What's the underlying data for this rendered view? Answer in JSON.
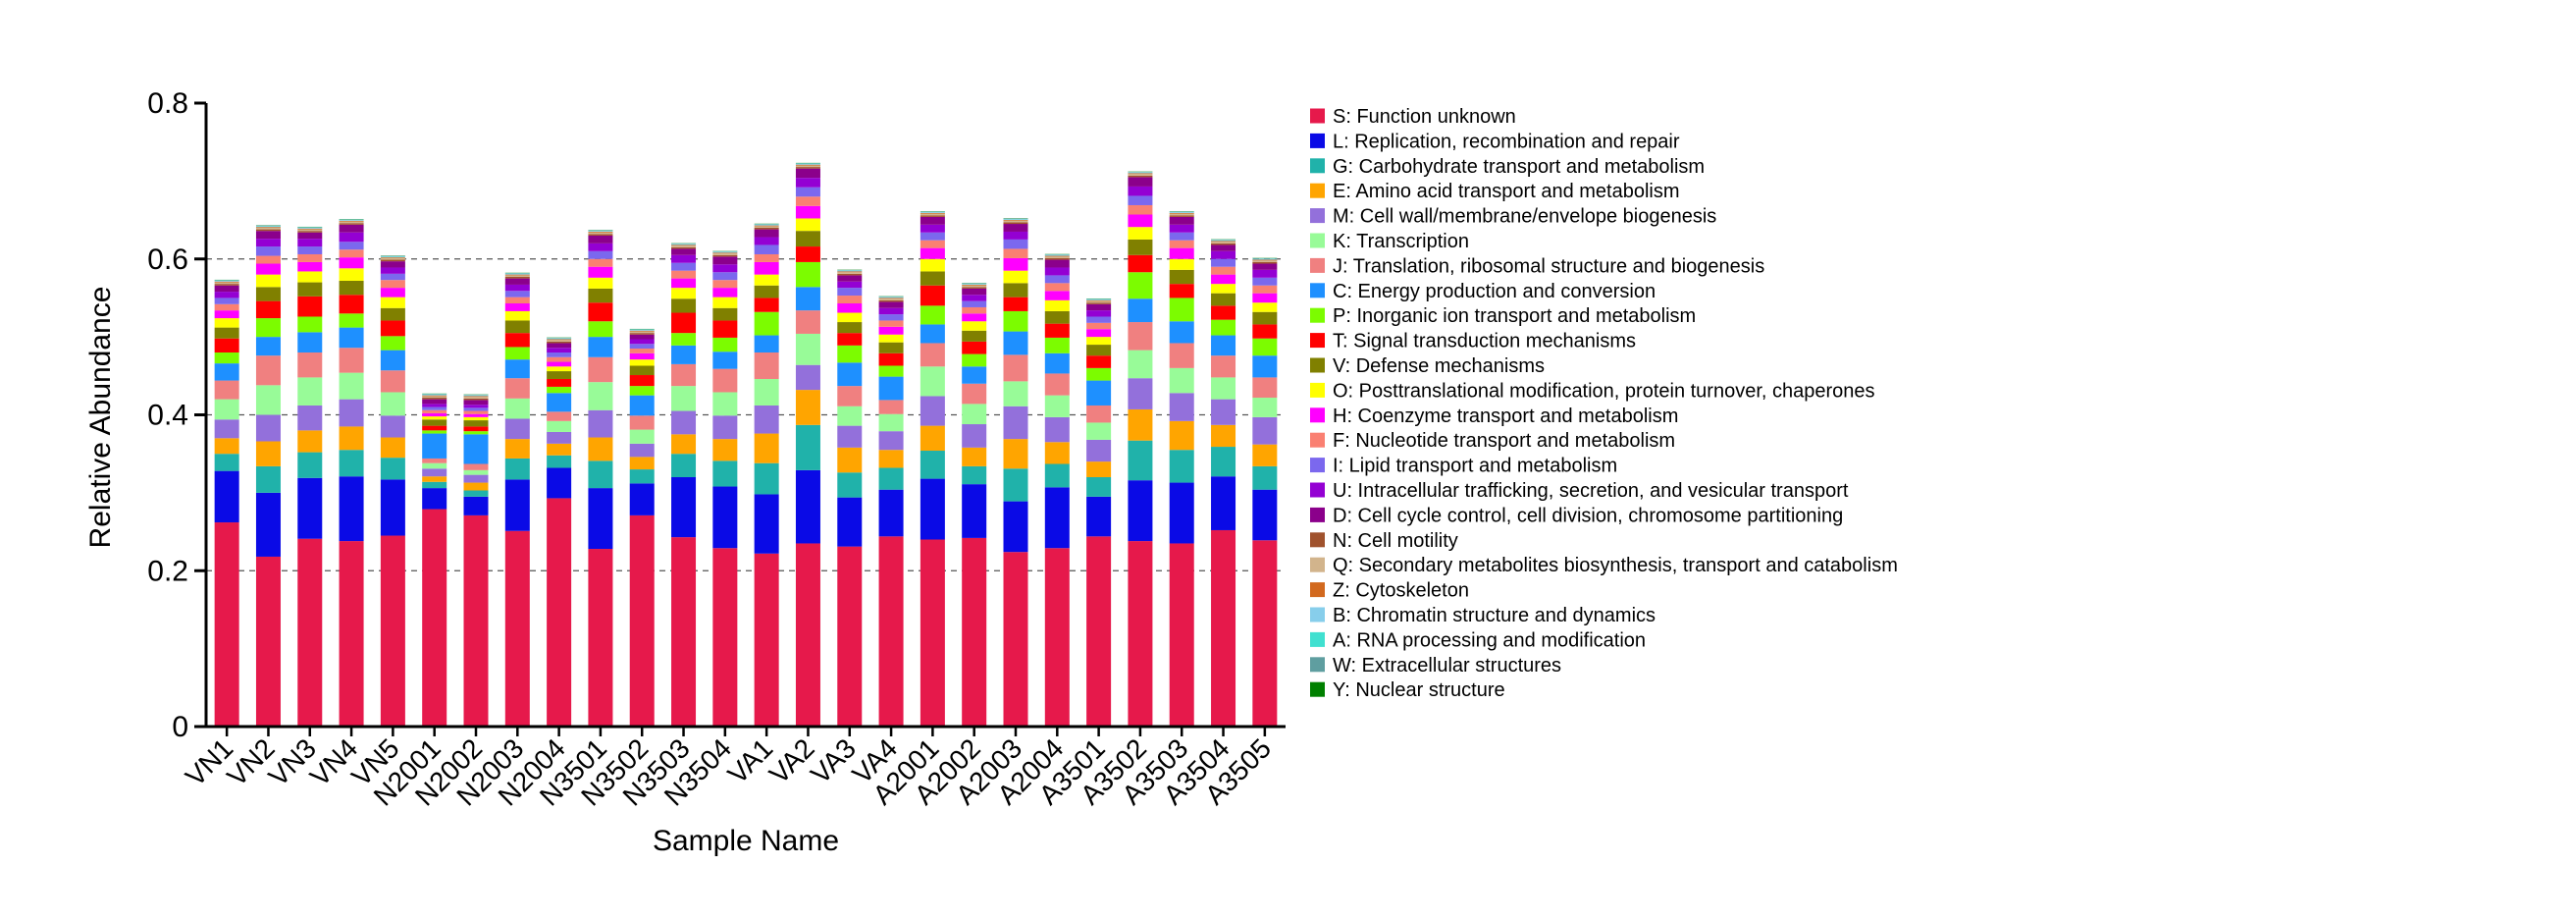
{
  "chart_data": {
    "type": "bar",
    "stacked": true,
    "xlabel": "Sample Name",
    "ylabel": "Relative Abundance",
    "ylim": [
      0,
      0.8
    ],
    "yticks": [
      0,
      0.2,
      0.4,
      0.6,
      0.8
    ],
    "ytick_labels": [
      "0",
      "0.2",
      "0.4",
      "0.6",
      "0.8"
    ],
    "grid": "dashed horizontal at 0.2, 0.4, 0.6",
    "legend_position": "right",
    "categories": [
      "VN1",
      "VN2",
      "VN3",
      "VN4",
      "VN5",
      "N2001",
      "N2002",
      "N2003",
      "N2004",
      "N3501",
      "N3502",
      "N3503",
      "N3504",
      "VA1",
      "VA2",
      "VA3",
      "VA4",
      "A2001",
      "A2002",
      "A2003",
      "A2004",
      "A3501",
      "A3502",
      "A3503",
      "A3504",
      "A3505"
    ],
    "series": [
      {
        "name": "S: Function unknown",
        "color": "#e6194b",
        "values": [
          0.262,
          0.218,
          0.241,
          0.238,
          0.245,
          0.279,
          0.271,
          0.251,
          0.293,
          0.228,
          0.271,
          0.243,
          0.229,
          0.222,
          0.235,
          0.231,
          0.244,
          0.24,
          0.242,
          0.224,
          0.229,
          0.244,
          0.238,
          0.235,
          0.252,
          0.239
        ]
      },
      {
        "name": "L: Replication, recombination and repair",
        "color": "#0a0ae6",
        "values": [
          0.066,
          0.082,
          0.078,
          0.083,
          0.072,
          0.027,
          0.024,
          0.066,
          0.039,
          0.078,
          0.041,
          0.077,
          0.079,
          0.076,
          0.094,
          0.063,
          0.06,
          0.078,
          0.069,
          0.065,
          0.078,
          0.051,
          0.078,
          0.078,
          0.069,
          0.065
        ]
      },
      {
        "name": "G: Carbohydrate transport and metabolism",
        "color": "#20b2aa",
        "values": [
          0.022,
          0.034,
          0.033,
          0.034,
          0.028,
          0.008,
          0.008,
          0.027,
          0.016,
          0.035,
          0.018,
          0.03,
          0.033,
          0.04,
          0.058,
          0.032,
          0.028,
          0.036,
          0.023,
          0.042,
          0.03,
          0.025,
          0.051,
          0.042,
          0.038,
          0.03
        ]
      },
      {
        "name": "E: Amino acid transport and metabolism",
        "color": "#ffa500",
        "values": [
          0.02,
          0.032,
          0.028,
          0.03,
          0.026,
          0.007,
          0.01,
          0.025,
          0.015,
          0.03,
          0.016,
          0.025,
          0.028,
          0.038,
          0.045,
          0.032,
          0.023,
          0.032,
          0.024,
          0.038,
          0.028,
          0.02,
          0.04,
          0.037,
          0.028,
          0.028
        ]
      },
      {
        "name": "M: Cell wall/membrane/envelope biogenesis",
        "color": "#9370db",
        "values": [
          0.024,
          0.034,
          0.032,
          0.035,
          0.028,
          0.01,
          0.01,
          0.026,
          0.015,
          0.035,
          0.017,
          0.03,
          0.03,
          0.036,
          0.032,
          0.028,
          0.024,
          0.038,
          0.03,
          0.042,
          0.032,
          0.028,
          0.04,
          0.036,
          0.033,
          0.035
        ]
      },
      {
        "name": "K: Transcription",
        "color": "#98fb98",
        "values": [
          0.026,
          0.038,
          0.036,
          0.034,
          0.03,
          0.007,
          0.006,
          0.026,
          0.014,
          0.036,
          0.018,
          0.032,
          0.03,
          0.034,
          0.04,
          0.025,
          0.022,
          0.038,
          0.026,
          0.032,
          0.028,
          0.022,
          0.036,
          0.032,
          0.028,
          0.025
        ]
      },
      {
        "name": "J: Translation, ribosomal structure and biogenesis",
        "color": "#f08080",
        "values": [
          0.024,
          0.038,
          0.032,
          0.032,
          0.028,
          0.006,
          0.008,
          0.026,
          0.012,
          0.032,
          0.018,
          0.028,
          0.03,
          0.034,
          0.03,
          0.026,
          0.018,
          0.03,
          0.026,
          0.034,
          0.028,
          0.022,
          0.036,
          0.032,
          0.028,
          0.026
        ]
      },
      {
        "name": "C: Energy production and conversion",
        "color": "#1e90ff",
        "values": [
          0.022,
          0.024,
          0.026,
          0.026,
          0.026,
          0.032,
          0.038,
          0.024,
          0.024,
          0.026,
          0.026,
          0.024,
          0.022,
          0.022,
          0.03,
          0.03,
          0.03,
          0.024,
          0.022,
          0.03,
          0.026,
          0.032,
          0.03,
          0.028,
          0.026,
          0.028
        ]
      },
      {
        "name": "P: Inorganic ion transport and metabolism",
        "color": "#7cfc00",
        "values": [
          0.014,
          0.024,
          0.02,
          0.018,
          0.018,
          0.004,
          0.004,
          0.016,
          0.008,
          0.02,
          0.012,
          0.016,
          0.018,
          0.03,
          0.032,
          0.022,
          0.014,
          0.024,
          0.016,
          0.026,
          0.02,
          0.016,
          0.034,
          0.03,
          0.02,
          0.022
        ]
      },
      {
        "name": "T: Signal transduction mechanisms",
        "color": "#ff0000",
        "values": [
          0.018,
          0.022,
          0.026,
          0.024,
          0.02,
          0.006,
          0.006,
          0.018,
          0.01,
          0.024,
          0.014,
          0.026,
          0.022,
          0.018,
          0.02,
          0.016,
          0.016,
          0.026,
          0.016,
          0.018,
          0.018,
          0.016,
          0.022,
          0.018,
          0.018,
          0.018
        ]
      },
      {
        "name": "V: Defense mechanisms",
        "color": "#808000",
        "values": [
          0.014,
          0.018,
          0.018,
          0.018,
          0.016,
          0.008,
          0.008,
          0.016,
          0.01,
          0.018,
          0.012,
          0.018,
          0.016,
          0.016,
          0.02,
          0.014,
          0.014,
          0.018,
          0.014,
          0.018,
          0.016,
          0.014,
          0.02,
          0.018,
          0.016,
          0.016
        ]
      },
      {
        "name": "O: Posttranslational modification, protein turnover, chaperones",
        "color": "#ffff00",
        "values": [
          0.012,
          0.016,
          0.014,
          0.016,
          0.014,
          0.004,
          0.004,
          0.012,
          0.006,
          0.014,
          0.008,
          0.014,
          0.014,
          0.014,
          0.016,
          0.012,
          0.01,
          0.016,
          0.012,
          0.016,
          0.014,
          0.01,
          0.016,
          0.014,
          0.012,
          0.012
        ]
      },
      {
        "name": "H: Coenzyme transport and metabolism",
        "color": "#ff00ff",
        "values": [
          0.01,
          0.014,
          0.012,
          0.014,
          0.012,
          0.004,
          0.004,
          0.01,
          0.006,
          0.014,
          0.008,
          0.012,
          0.012,
          0.016,
          0.016,
          0.012,
          0.01,
          0.014,
          0.01,
          0.016,
          0.012,
          0.01,
          0.016,
          0.014,
          0.012,
          0.012
        ]
      },
      {
        "name": "F: Nucleotide transport and metabolism",
        "color": "#fa8072",
        "values": [
          0.008,
          0.01,
          0.01,
          0.01,
          0.01,
          0.004,
          0.004,
          0.008,
          0.006,
          0.01,
          0.006,
          0.01,
          0.01,
          0.01,
          0.012,
          0.01,
          0.008,
          0.01,
          0.008,
          0.012,
          0.01,
          0.008,
          0.012,
          0.01,
          0.01,
          0.01
        ]
      },
      {
        "name": "I: Lipid transport and metabolism",
        "color": "#7b68ee",
        "values": [
          0.008,
          0.012,
          0.01,
          0.01,
          0.008,
          0.004,
          0.004,
          0.008,
          0.006,
          0.01,
          0.006,
          0.01,
          0.01,
          0.012,
          0.012,
          0.01,
          0.008,
          0.01,
          0.008,
          0.012,
          0.01,
          0.008,
          0.012,
          0.01,
          0.01,
          0.01
        ]
      },
      {
        "name": "U: Intracellular trafficking, secretion, and vesicular transport",
        "color": "#9400d3",
        "values": [
          0.008,
          0.01,
          0.01,
          0.012,
          0.008,
          0.004,
          0.004,
          0.008,
          0.006,
          0.01,
          0.006,
          0.01,
          0.01,
          0.01,
          0.012,
          0.008,
          0.008,
          0.01,
          0.008,
          0.01,
          0.01,
          0.008,
          0.012,
          0.01,
          0.01,
          0.01
        ]
      },
      {
        "name": "D: Cell cycle control, cell division, chromosome partitioning",
        "color": "#8b008b",
        "values": [
          0.008,
          0.01,
          0.008,
          0.01,
          0.008,
          0.006,
          0.006,
          0.008,
          0.006,
          0.01,
          0.006,
          0.008,
          0.01,
          0.01,
          0.012,
          0.008,
          0.008,
          0.01,
          0.008,
          0.01,
          0.01,
          0.008,
          0.012,
          0.01,
          0.008,
          0.008
        ]
      },
      {
        "name": "N: Cell motility",
        "color": "#a0522d",
        "values": [
          0.002,
          0.002,
          0.002,
          0.002,
          0.002,
          0.002,
          0.002,
          0.002,
          0.002,
          0.002,
          0.002,
          0.002,
          0.002,
          0.002,
          0.002,
          0.002,
          0.002,
          0.002,
          0.002,
          0.002,
          0.002,
          0.002,
          0.002,
          0.002,
          0.002,
          0.002
        ]
      },
      {
        "name": "Q: Secondary metabolites biosynthesis, transport and catabolism",
        "color": "#d2b48c",
        "values": [
          0.002,
          0.002,
          0.002,
          0.002,
          0.002,
          0.002,
          0.002,
          0.002,
          0.002,
          0.002,
          0.002,
          0.002,
          0.002,
          0.002,
          0.002,
          0.002,
          0.002,
          0.002,
          0.002,
          0.002,
          0.002,
          0.002,
          0.002,
          0.002,
          0.002,
          0.002
        ]
      },
      {
        "name": "Z: Cytoskeleton",
        "color": "#d2691e",
        "values": [
          0.001,
          0.001,
          0.001,
          0.001,
          0.001,
          0.001,
          0.001,
          0.001,
          0.001,
          0.001,
          0.001,
          0.001,
          0.001,
          0.001,
          0.001,
          0.001,
          0.001,
          0.001,
          0.001,
          0.001,
          0.001,
          0.001,
          0.001,
          0.001,
          0.001,
          0.001
        ]
      },
      {
        "name": "B: Chromatin structure and dynamics",
        "color": "#87ceeb",
        "values": [
          0.001,
          0.001,
          0.001,
          0.001,
          0.001,
          0.001,
          0.001,
          0.001,
          0.001,
          0.001,
          0.001,
          0.001,
          0.001,
          0.001,
          0.001,
          0.001,
          0.001,
          0.001,
          0.001,
          0.001,
          0.001,
          0.001,
          0.001,
          0.001,
          0.001,
          0.001
        ]
      },
      {
        "name": "A: RNA processing and modification",
        "color": "#40e0d0",
        "values": [
          0.0005,
          0.0005,
          0.0005,
          0.0005,
          0.0005,
          0.0005,
          0.0005,
          0.0005,
          0.0005,
          0.0005,
          0.0005,
          0.0005,
          0.0005,
          0.0005,
          0.0005,
          0.0005,
          0.0005,
          0.0005,
          0.0005,
          0.0005,
          0.0005,
          0.0005,
          0.0005,
          0.0005,
          0.0005,
          0.0005
        ]
      },
      {
        "name": "W: Extracellular structures",
        "color": "#5f9ea0",
        "values": [
          0.0005,
          0.0005,
          0.0005,
          0.0005,
          0.0005,
          0.0005,
          0.0005,
          0.0005,
          0.0005,
          0.0005,
          0.0005,
          0.0005,
          0.0005,
          0.0005,
          0.0005,
          0.0005,
          0.0005,
          0.0005,
          0.0005,
          0.0005,
          0.0005,
          0.0005,
          0.0005,
          0.0005,
          0.0005,
          0.0005
        ]
      },
      {
        "name": "Y: Nuclear structure",
        "color": "#008000",
        "values": [
          0.0003,
          0.0003,
          0.0003,
          0.0003,
          0.0003,
          0.0003,
          0.0003,
          0.0003,
          0.0003,
          0.0003,
          0.0003,
          0.0003,
          0.0003,
          0.0003,
          0.0003,
          0.0003,
          0.0003,
          0.0003,
          0.0003,
          0.0003,
          0.0003,
          0.0003,
          0.0003,
          0.0003,
          0.0003,
          0.0003
        ]
      }
    ]
  }
}
